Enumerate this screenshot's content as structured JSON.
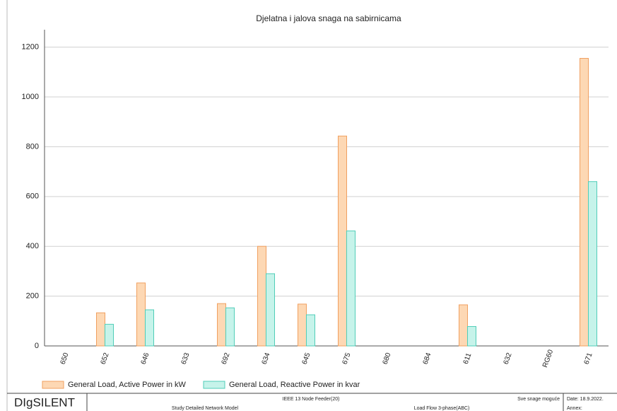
{
  "chart_data": {
    "type": "bar",
    "title": "Djelatna i jalova snaga na sabirnicama",
    "categories": [
      "650",
      "652",
      "646",
      "633",
      "692",
      "634",
      "645",
      "675",
      "680",
      "684",
      "611",
      "632",
      "RG60",
      "671"
    ],
    "series": [
      {
        "name": "General Load, Active Power in kW",
        "color": "#fdd8b4",
        "values": [
          0,
          133,
          253,
          0,
          170,
          400,
          168,
          843,
          0,
          0,
          165,
          0,
          0,
          1155
        ]
      },
      {
        "name": "General Load, Reactive Power in kvar",
        "color": "#c6f3ea",
        "values": [
          0,
          87,
          145,
          0,
          153,
          290,
          125,
          462,
          0,
          0,
          78,
          0,
          0,
          660
        ]
      }
    ],
    "ylim": [
      0,
      1270
    ],
    "yticks": [
      0,
      200,
      400,
      600,
      800,
      1000,
      1200
    ],
    "grid": true
  },
  "footer": {
    "brand": "DIgSILENT",
    "project": "IEEE 13 Node Feeder(20)",
    "study": "Study Detailed Network Model",
    "calculation": "Load Flow 3-phase(ABC)",
    "note": "Sve snage moguće",
    "date": "Date: 18.9.2022.",
    "annex": "Annex:"
  }
}
